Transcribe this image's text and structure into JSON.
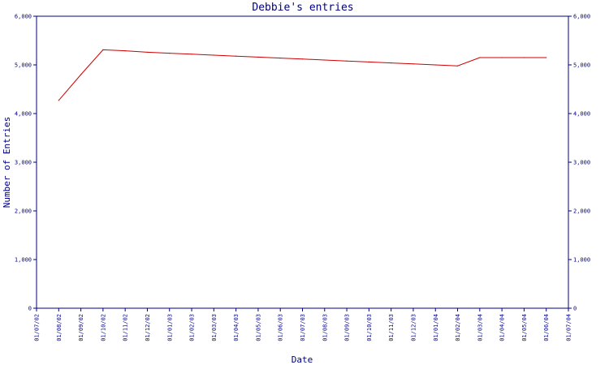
{
  "chart_data": {
    "type": "line",
    "title": "Debbie's entries",
    "xlabel": "Date",
    "ylabel": "Number of Entries",
    "ylim": [
      0,
      6000
    ],
    "yticks": [
      0,
      1000,
      2000,
      3000,
      4000,
      5000,
      6000
    ],
    "ytick_labels": [
      "0",
      "1,000",
      "2,000",
      "3,000",
      "4,000",
      "5,000",
      "6,000"
    ],
    "secondary_y_axis": true,
    "grid": false,
    "line_color": "#cc0000",
    "axis_color": "#000080",
    "xtick_labels": [
      "01/07/02",
      "01/08/02",
      "01/09/02",
      "01/10/02",
      "01/11/02",
      "01/12/02",
      "01/01/03",
      "01/02/03",
      "01/03/03",
      "01/04/03",
      "01/05/03",
      "01/06/03",
      "01/07/03",
      "01/08/03",
      "01/09/03",
      "01/10/03",
      "01/11/03",
      "01/12/03",
      "01/01/04",
      "01/02/04",
      "01/03/04",
      "01/04/04",
      "01/05/04",
      "01/06/04",
      "01/07/04"
    ],
    "series": [
      {
        "x": [
          "01/08/02",
          "01/09/02",
          "01/10/02",
          "01/11/02",
          "01/12/02",
          "01/01/03",
          "01/02/03",
          "01/03/03",
          "01/04/03",
          "01/05/03",
          "01/06/03",
          "01/07/03",
          "01/08/03",
          "01/09/03",
          "01/10/03",
          "01/11/03",
          "01/12/03",
          "01/01/04",
          "01/02/04",
          "01/03/04",
          "01/04/04",
          "01/05/04",
          "01/06/04"
        ],
        "values": [
          4270,
          4800,
          5310,
          5290,
          5260,
          5240,
          5220,
          5200,
          5180,
          5160,
          5140,
          5120,
          5100,
          5080,
          5060,
          5040,
          5020,
          5000,
          4980,
          5150,
          5150,
          5150,
          5150
        ]
      }
    ]
  }
}
